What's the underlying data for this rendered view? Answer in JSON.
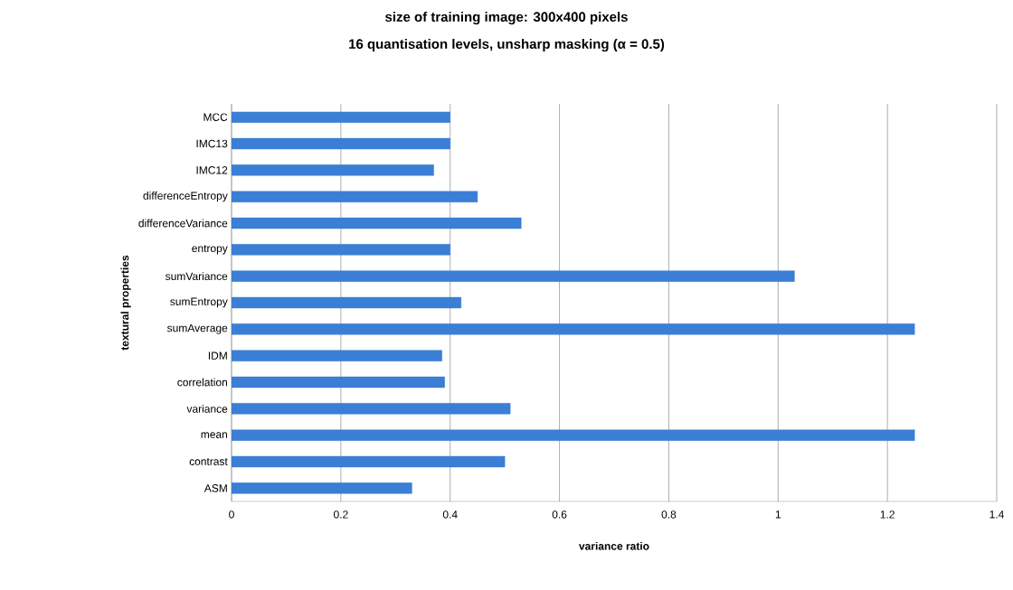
{
  "chart_data": {
    "type": "bar",
    "orientation": "horizontal",
    "title": "size of training image: 300x400 pixels",
    "subtitle": "16 quantisation levels, unsharp masking (α = 0.5)",
    "xlabel": "variance ratio",
    "ylabel": "textural properties",
    "categories": [
      "MCC",
      "IMC13",
      "IMC12",
      "differenceEntropy",
      "differenceVariance",
      "entropy",
      "sumVariance",
      "sumEntropy",
      "sumAverage",
      "IDM",
      "correlation",
      "variance",
      "mean",
      "contrast",
      "ASM"
    ],
    "values": [
      0.4,
      0.4,
      0.37,
      0.45,
      0.53,
      0.4,
      1.03,
      0.42,
      1.25,
      0.385,
      0.39,
      0.51,
      1.25,
      0.5,
      0.33
    ],
    "color": "#3a7fd5",
    "xlim": [
      0,
      1.4
    ],
    "xticks": [
      0,
      0.2,
      0.4,
      0.6,
      0.8,
      1,
      1.2,
      1.4
    ],
    "grid": "x"
  }
}
